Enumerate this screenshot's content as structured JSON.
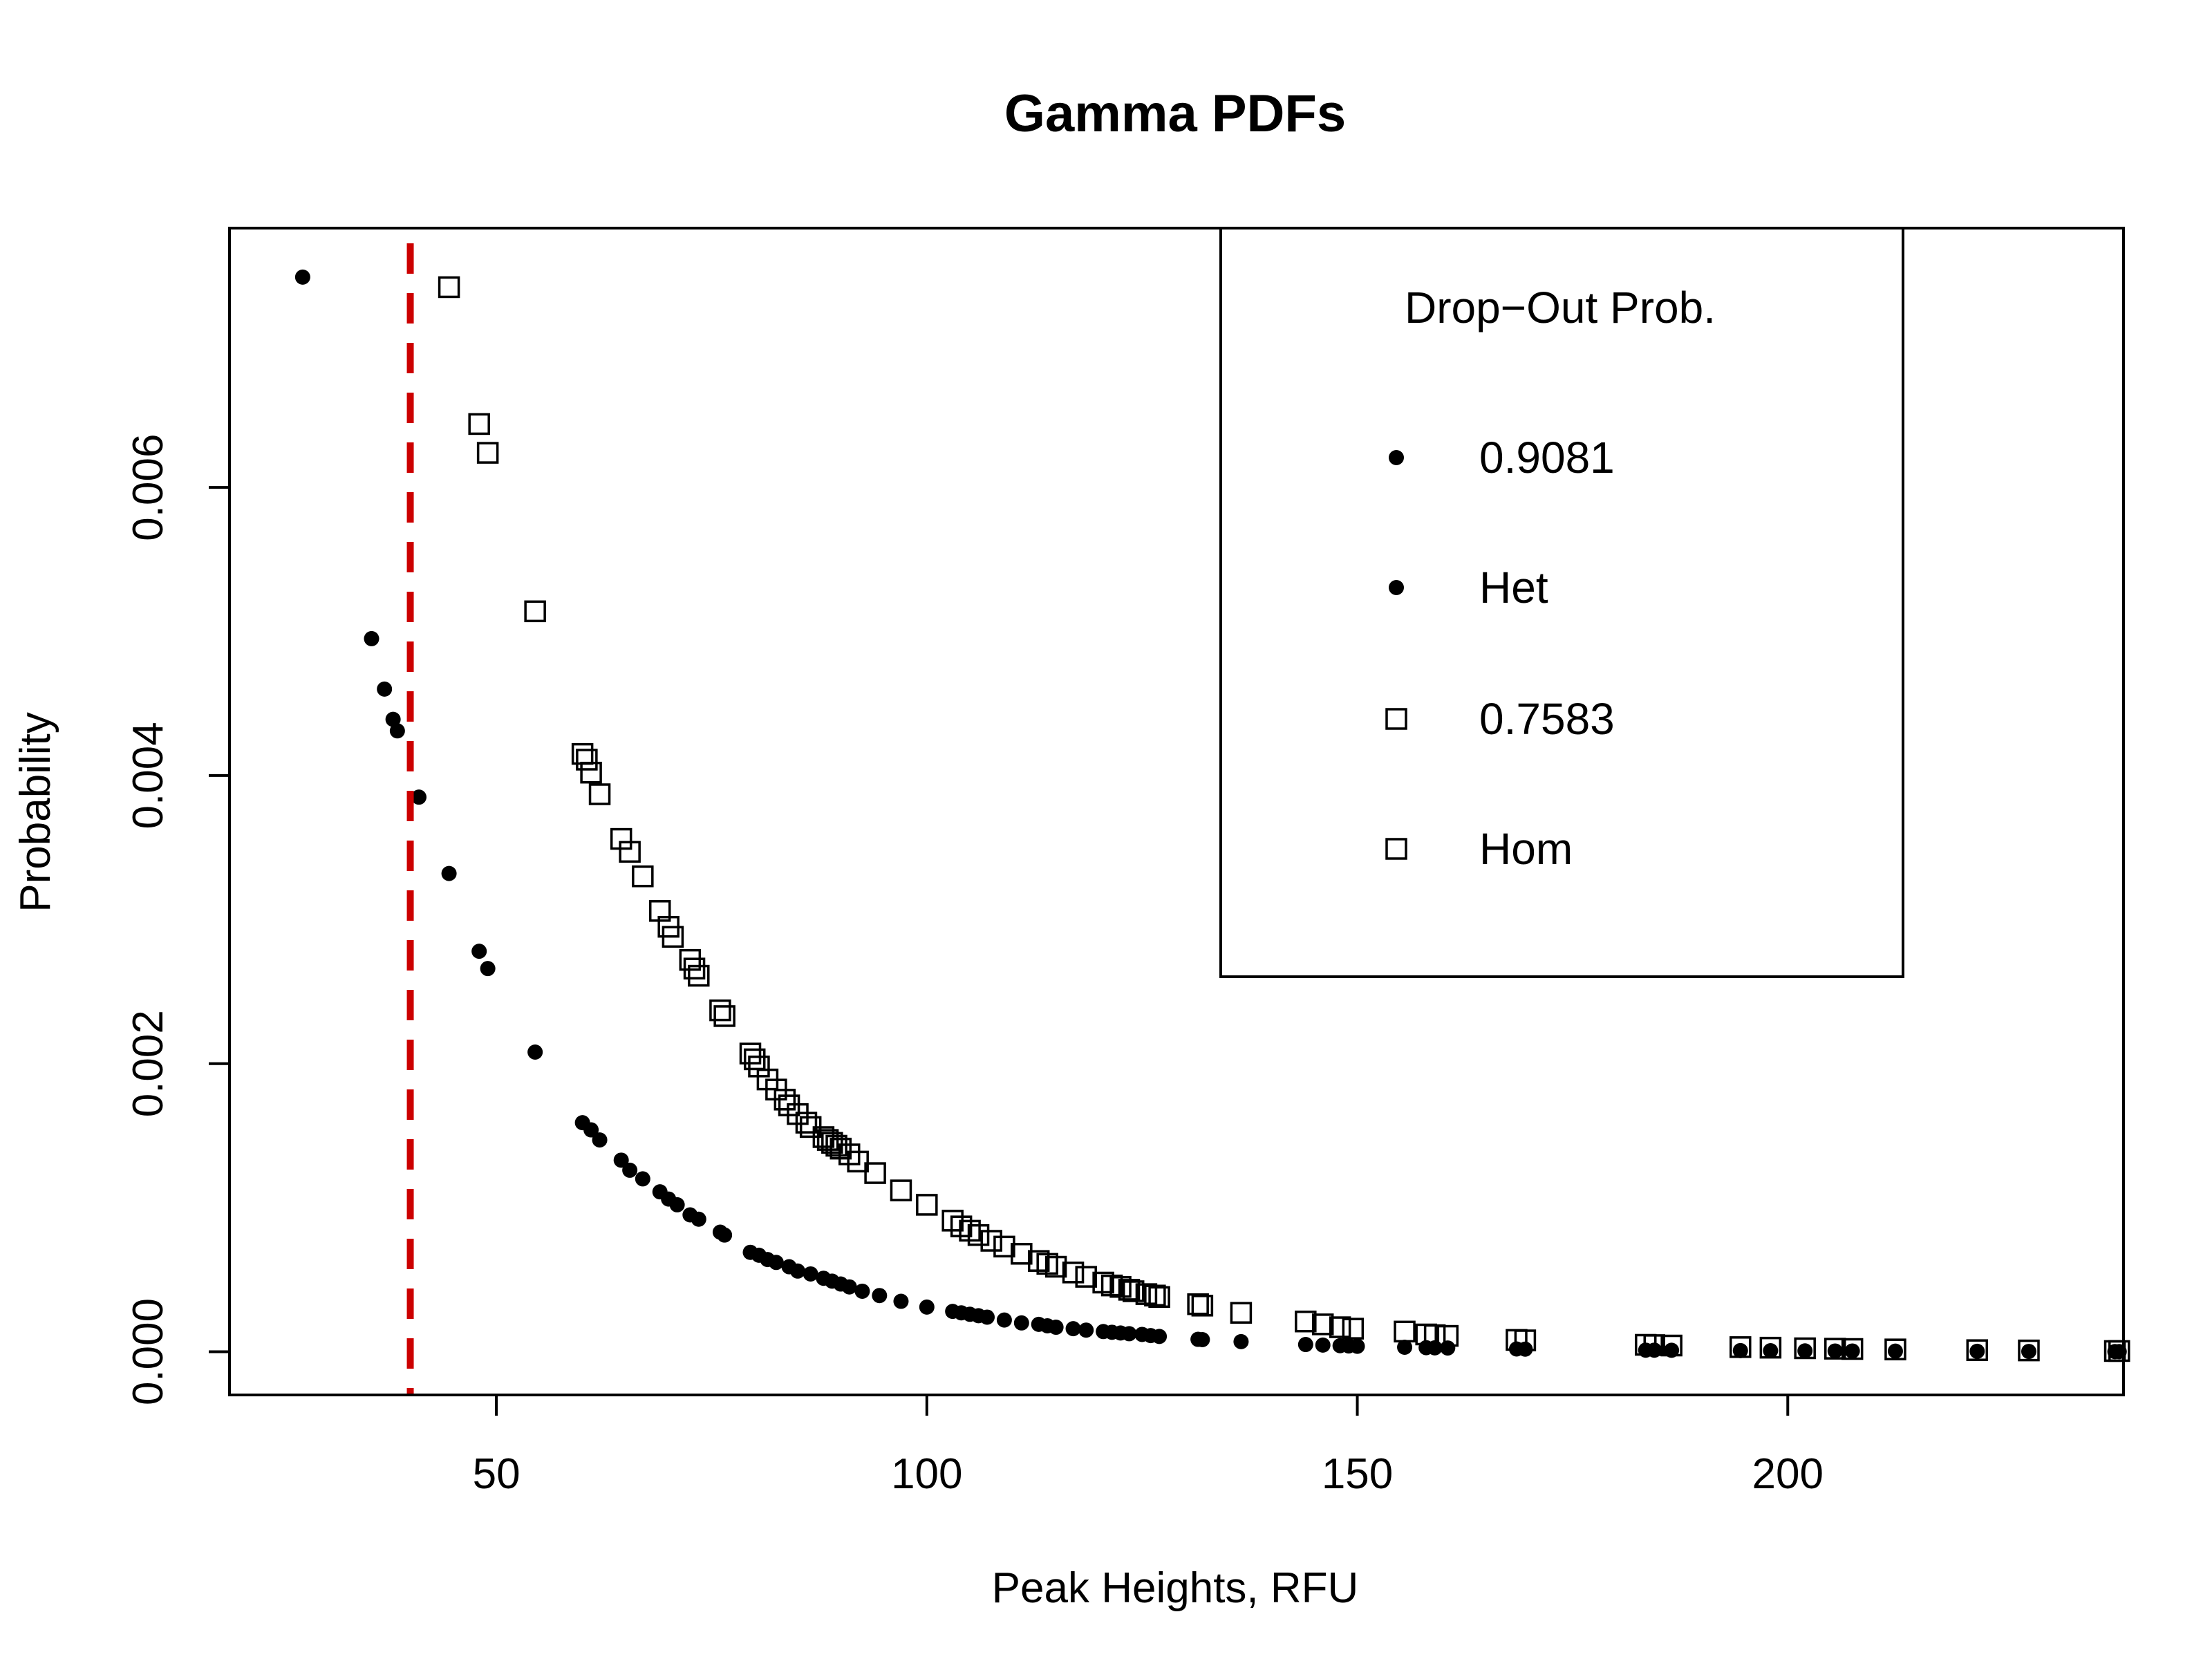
{
  "colors": {
    "background": "#ffffff",
    "ink": "#000000",
    "threshold_line": "#cc0000"
  },
  "chart_data": {
    "type": "scatter",
    "title": "Gamma PDFs",
    "xlabel": "Peak Heights, RFU",
    "ylabel": "Probability",
    "xlim": [
      19,
      239
    ],
    "ylim": [
      -0.0003,
      0.0078
    ],
    "x_ticks": [
      50,
      100,
      150,
      200
    ],
    "x_tick_labels": [
      "50",
      "100",
      "150",
      "200"
    ],
    "y_ticks": [
      0.0,
      0.002,
      0.004,
      0.006
    ],
    "y_tick_labels": [
      "0.000",
      "0.002",
      "0.004",
      "0.006"
    ],
    "threshold": {
      "x": 40,
      "style": "dashed",
      "color": "#cc0000"
    },
    "legend": {
      "title": "Drop−Out Prob.",
      "position": "top-right",
      "entries": [
        {
          "marker": "dot",
          "label": "0.9081"
        },
        {
          "marker": "dot",
          "label": "Het"
        },
        {
          "marker": "square",
          "label": "0.7583"
        },
        {
          "marker": "square",
          "label": "Hom"
        }
      ]
    },
    "series": [
      {
        "name": "Het",
        "marker": "dot",
        "x": [
          27.5,
          35.5,
          37,
          38,
          38.5,
          41,
          44.5,
          48,
          49,
          54.5,
          60,
          61,
          62,
          64.5,
          65.5,
          67,
          69,
          70,
          71,
          72.5,
          73.5,
          76,
          76.5,
          79.5,
          80.5,
          81.5,
          82.5,
          84,
          85,
          86.5,
          88,
          89,
          90,
          91,
          92.5,
          94.5,
          97,
          100,
          103,
          104,
          105,
          106,
          107,
          109,
          111,
          113,
          114,
          115,
          117,
          118.5,
          120.5,
          121.5,
          122.5,
          123.5,
          125,
          126,
          127,
          131.5,
          132,
          136.5,
          144,
          146,
          148,
          149,
          150,
          155.5,
          158,
          159,
          160.5,
          168.5,
          169.5,
          183.5,
          184.5,
          186.5,
          194.5,
          198,
          202,
          205.5,
          207.5,
          212.5,
          222,
          228,
          238,
          238.5
        ],
        "y": [
          0.00746,
          0.00495,
          0.0046,
          0.00439,
          0.00431,
          0.00385,
          0.00332,
          0.00278,
          0.00266,
          0.00208,
          0.00159,
          0.00154,
          0.00147,
          0.00133,
          0.00126,
          0.0012,
          0.00111,
          0.00106,
          0.00102,
          0.00095,
          0.00092,
          0.00083,
          0.00081,
          0.00069,
          0.00067,
          0.00064,
          0.00062,
          0.00059,
          0.00056,
          0.00054,
          0.00051,
          0.00049,
          0.00047,
          0.00045,
          0.00042,
          0.00039,
          0.00035,
          0.00031,
          0.00028,
          0.00027,
          0.00026,
          0.00025,
          0.00024,
          0.00022,
          0.0002,
          0.00019,
          0.00018,
          0.00017,
          0.00016,
          0.00015,
          0.00014,
          0.000135,
          0.00013,
          0.000125,
          0.00012,
          0.000112,
          0.000106,
          8.6e-05,
          8.4e-05,
          7e-05,
          5e-05,
          4.6e-05,
          4.2e-05,
          4e-05,
          3.8e-05,
          3.1e-05,
          2.8e-05,
          2.7e-05,
          2.6e-05,
          1.9e-05,
          1.8e-05,
          1.1e-05,
          1.1e-05,
          1e-05,
          8e-06,
          7e-06,
          6e-06,
          5e-06,
          5e-06,
          4e-06,
          3e-06,
          2e-06,
          1e-06,
          1e-06
        ]
      },
      {
        "name": "Hom",
        "marker": "square",
        "x": [
          44.5,
          48,
          49,
          54.5,
          60,
          60.5,
          61,
          62,
          64.5,
          65.5,
          67,
          69,
          70,
          70.5,
          72.5,
          73,
          73.5,
          76,
          76.5,
          79.5,
          80,
          80.5,
          81.5,
          82.5,
          83.5,
          84,
          85,
          86,
          86.5,
          88,
          88.5,
          89,
          89.5,
          90,
          91,
          92,
          94,
          97,
          100,
          103,
          104,
          105,
          106,
          107.5,
          109,
          111,
          113,
          114,
          115,
          117,
          118.5,
          120.5,
          121.5,
          122.5,
          123.5,
          124,
          125.5,
          126.5,
          127,
          131.5,
          132,
          136.5,
          144,
          146,
          148,
          149.5,
          155.5,
          158,
          159,
          160.5,
          168.5,
          169.5,
          183.5,
          184.5,
          186.5,
          194.5,
          198,
          202,
          205.5,
          207.5,
          212.5,
          222,
          228,
          238,
          238.5
        ],
        "y": [
          0.00739,
          0.00644,
          0.00624,
          0.00514,
          0.00415,
          0.00411,
          0.00402,
          0.00387,
          0.00356,
          0.00347,
          0.0033,
          0.00306,
          0.00295,
          0.00288,
          0.00272,
          0.00266,
          0.00261,
          0.00237,
          0.00233,
          0.00207,
          0.00203,
          0.00198,
          0.00189,
          0.00182,
          0.00175,
          0.00171,
          0.00165,
          0.00159,
          0.00156,
          0.00149,
          0.00147,
          0.00145,
          0.00143,
          0.00141,
          0.00137,
          0.00132,
          0.00124,
          0.00112,
          0.00102,
          0.00091,
          0.00087,
          0.00084,
          0.00081,
          0.00077,
          0.00073,
          0.00068,
          0.00063,
          0.00061,
          0.00059,
          0.00055,
          0.00052,
          0.00048,
          0.00046,
          0.00045,
          0.00043,
          0.00042,
          0.0004,
          0.00039,
          0.00038,
          0.00033,
          0.00032,
          0.00027,
          0.00021,
          0.00019,
          0.00017,
          0.00016,
          0.00014,
          0.00012,
          0.000115,
          0.00011,
          8.2e-05,
          7.9e-05,
          4.8e-05,
          4.6e-05,
          4.3e-05,
          3.2e-05,
          2.8e-05,
          2.4e-05,
          2.1e-05,
          1.9e-05,
          1.6e-05,
          1.1e-05,
          9e-06,
          5e-06,
          5e-06
        ]
      }
    ]
  }
}
